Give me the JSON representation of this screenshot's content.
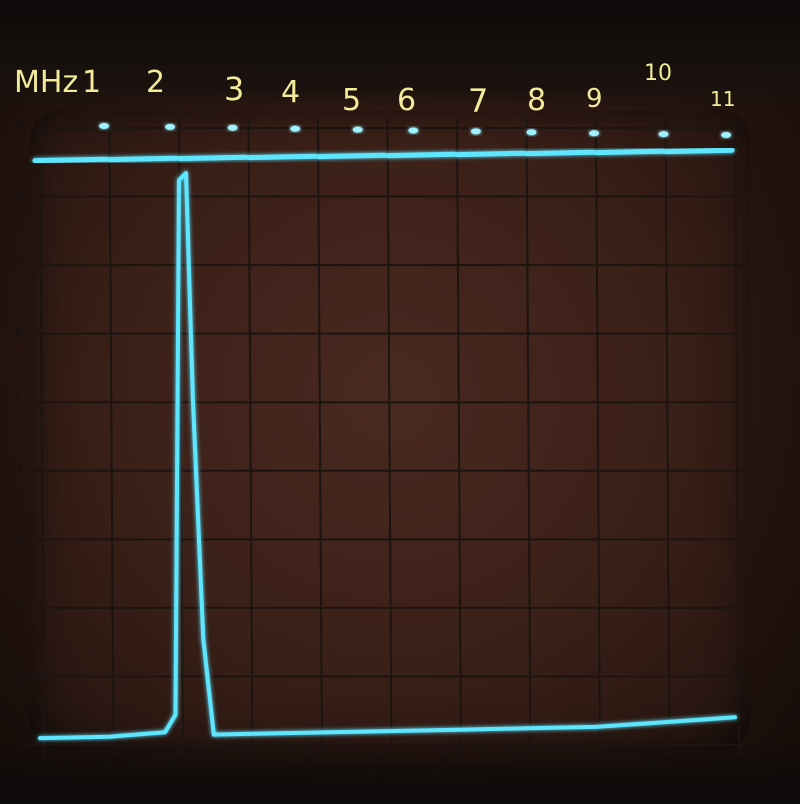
{
  "annotations": {
    "unit_label": "MHz",
    "markers": [
      "1",
      "2",
      "3",
      "4",
      "5",
      "6",
      "7",
      "8",
      "9",
      "10",
      "11"
    ]
  },
  "graticule": {
    "y_ticks": [
      "1",
      "2",
      "3",
      "4",
      "5",
      "6",
      "7",
      "8",
      "9"
    ],
    "x_ticks": [
      "1",
      "2",
      "3",
      "4",
      "5",
      "6",
      "7",
      "8",
      "9"
    ]
  },
  "colors": {
    "trace": "#5fe6ff",
    "trace_glow": "#9ff3ff",
    "grid": "#1c1411",
    "handwriting": "#f3eb9a"
  },
  "chart_data": {
    "type": "line",
    "x": [
      0,
      1,
      1.8,
      1.95,
      2.0,
      2.1,
      2.2,
      2.35,
      2.5,
      3,
      4,
      5,
      6,
      7,
      8,
      9,
      10
    ],
    "values": [
      0.1,
      0.1,
      0.15,
      0.4,
      8.2,
      8.3,
      5.0,
      1.5,
      0.1,
      0.1,
      0.1,
      0.1,
      0.1,
      0.1,
      0.1,
      0.15,
      0.2
    ],
    "reference_level": 8.7,
    "xlim": [
      0,
      10
    ],
    "ylim": [
      0,
      9
    ],
    "grid": true
  }
}
